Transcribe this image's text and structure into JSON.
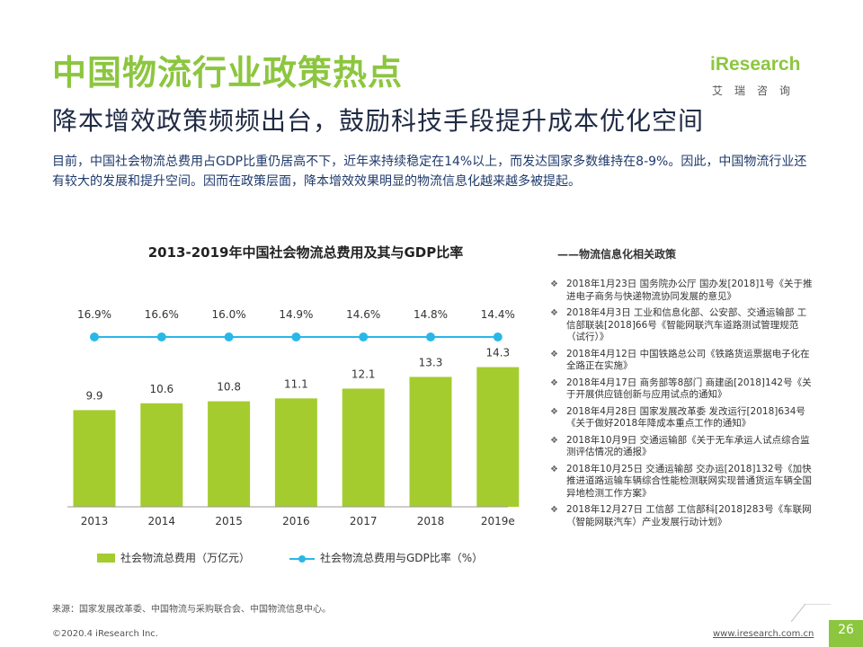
{
  "header": {
    "title": "中国物流行业政策热点",
    "subtitle": "降本增效政策频频出台，鼓励科技手段提升成本优化空间",
    "intro": "目前，中国社会物流总费用占GDP比重仍居高不下，近年来持续稳定在14%以上，而发达国家多数维持在8-9%。因此，中国物流行业还有较大的发展和提升空间。因而在政策层面，降本增效效果明显的物流信息化越来越多被提起。"
  },
  "logo": {
    "text": "iResearch",
    "cn": "艾瑞咨询"
  },
  "chart_data": {
    "type": "bar",
    "title": "2013-2019年中国社会物流总费用及其与GDP比率",
    "categories": [
      "2013",
      "2014",
      "2015",
      "2016",
      "2017",
      "2018",
      "2019e"
    ],
    "series": [
      {
        "name": "社会物流总费用（万亿元）",
        "type": "bar",
        "color": "#a4cc2f",
        "values": [
          9.9,
          10.6,
          10.8,
          11.1,
          12.1,
          13.3,
          14.3
        ],
        "labels": [
          "9.9",
          "10.6",
          "10.8",
          "11.1",
          "12.1",
          "13.3",
          "14.3"
        ]
      },
      {
        "name": "社会物流总费用与GDP比率（%）",
        "type": "line",
        "color": "#29b7e8",
        "values": [
          16.9,
          16.6,
          16.0,
          14.9,
          14.6,
          14.8,
          14.4
        ],
        "labels": [
          "16.9%",
          "16.6%",
          "16.0%",
          "14.9%",
          "14.6%",
          "14.8%",
          "14.4%"
        ]
      }
    ],
    "legend_position": "bottom",
    "grid": false
  },
  "policies": {
    "heading": "——物流信息化相关政策",
    "items": [
      "2018年1月23日 国务院办公厅 国办发[2018]1号《关于推进电子商务与快递物流协同发展的意见》",
      "2018年4月3日 工业和信息化部、公安部、交通运输部 工信部联装[2018]66号《智能网联汽车道路测试管理规范（试行）》",
      "2018年4月12日 中国铁路总公司《铁路货运票据电子化在全路正在实施》",
      "2018年4月17日 商务部等8部门 商建函[2018]142号《关于开展供应链创新与应用试点的通知》",
      "2018年4月28日 国家发展改革委 发改运行[2018]634号《关于做好2018年降成本重点工作的通知》",
      "2018年10月9日 交通运输部《关于无车承运人试点综合监测评估情况的通报》",
      "2018年10月25日 交通运输部 交办运[2018]132号《加快推进道路运输车辆综合性能检测联网实现普通货运车辆全国异地检测工作方案》",
      "2018年12月27日 工信部 工信部科[2018]283号《车联网（智能网联汽车）产业发展行动计划》"
    ]
  },
  "footer": {
    "source": "来源：国家发展改革委、中国物流与采购联合会、中国物流信息中心。",
    "copyright": "©2020.4 iResearch Inc.",
    "url": "www.iresearch.com.cn",
    "page": "26"
  }
}
